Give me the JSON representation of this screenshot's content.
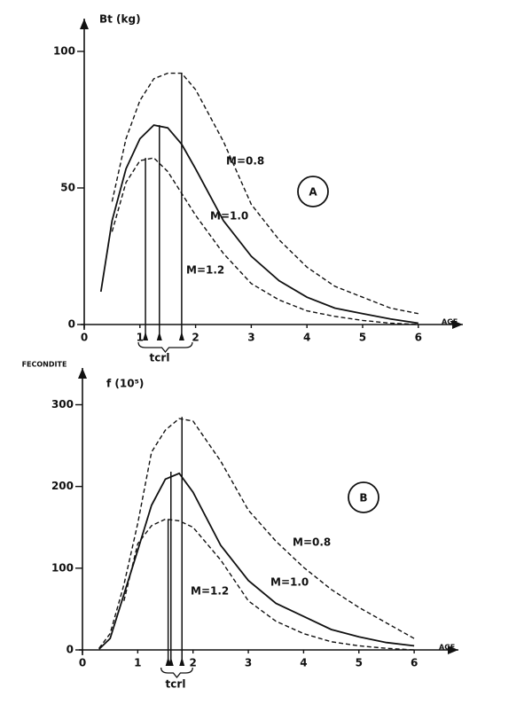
{
  "chart_data": [
    {
      "type": "line",
      "panel": "A",
      "y_label": "Bt (kg)",
      "x_label": "AGE",
      "annotation": "tcrl",
      "x": [
        0.3,
        0.5,
        0.75,
        1,
        1.25,
        1.5,
        1.75,
        2,
        2.5,
        3,
        3.5,
        4,
        4.5,
        5,
        5.5,
        6
      ],
      "series": [
        {
          "name": "M=0.8",
          "color": "#111111",
          "line_style": "dashed",
          "peak": [
            1.75,
            92
          ],
          "values": [
            null,
            45,
            68,
            82,
            90,
            92,
            92,
            86,
            67,
            44,
            31,
            21,
            14,
            10,
            6,
            4
          ]
        },
        {
          "name": "M=1.0",
          "color": "#111111",
          "line_style": "solid",
          "peak": [
            1.35,
            73
          ],
          "values": [
            12,
            38,
            57,
            68,
            73,
            72,
            66,
            57,
            38,
            25,
            16,
            10,
            6,
            4,
            2,
            0.5
          ]
        },
        {
          "name": "M=1.2",
          "color": "#111111",
          "line_style": "dashed",
          "peak": [
            1.1,
            61
          ],
          "values": [
            null,
            34,
            52,
            60,
            61,
            56,
            48,
            40,
            26,
            15,
            9,
            5,
            3,
            1.5,
            0.5,
            0
          ]
        }
      ],
      "xlim": [
        0,
        6.8
      ],
      "xticks": [
        0,
        1,
        2,
        3,
        4,
        5,
        6
      ],
      "ylim": [
        0,
        112
      ],
      "yticks": [
        0,
        50,
        100
      ],
      "grid": false
    },
    {
      "type": "line",
      "panel": "B",
      "y_title": "FECONDITE",
      "y_label": "f (10⁵)",
      "x_label": "AGE",
      "annotation": "tcrl",
      "x": [
        0.3,
        0.5,
        0.75,
        1,
        1.25,
        1.5,
        1.75,
        2,
        2.5,
        3,
        3.5,
        4,
        4.5,
        5,
        5.5,
        6
      ],
      "series": [
        {
          "name": "M=0.8",
          "color": "#111111",
          "line_style": "dashed",
          "peak": [
            1.8,
            285
          ],
          "values": [
            2,
            20,
            80,
            155,
            242,
            269,
            283,
            280,
            231,
            171,
            133,
            101,
            74,
            52,
            33,
            14
          ]
        },
        {
          "name": "M=1.0",
          "color": "#111111",
          "line_style": "solid",
          "peak": [
            1.6,
            218
          ],
          "values": [
            1,
            14,
            68,
            122,
            177,
            209,
            216,
            193,
            128,
            85,
            57,
            41,
            25,
            16,
            9,
            5
          ]
        },
        {
          "name": "M=1.2",
          "color": "#111111",
          "line_style": "dashed",
          "peak": [
            1.55,
            160
          ],
          "values": [
            null,
            null,
            60,
            130,
            152,
            160,
            158,
            150,
            110,
            60,
            35,
            20,
            10,
            5,
            2,
            0
          ]
        }
      ],
      "xlim": [
        0,
        6.8
      ],
      "xticks": [
        0,
        1,
        2,
        3,
        4,
        5,
        6
      ],
      "ylim": [
        0,
        345
      ],
      "yticks": [
        0,
        100,
        200,
        300
      ],
      "grid": false
    }
  ]
}
